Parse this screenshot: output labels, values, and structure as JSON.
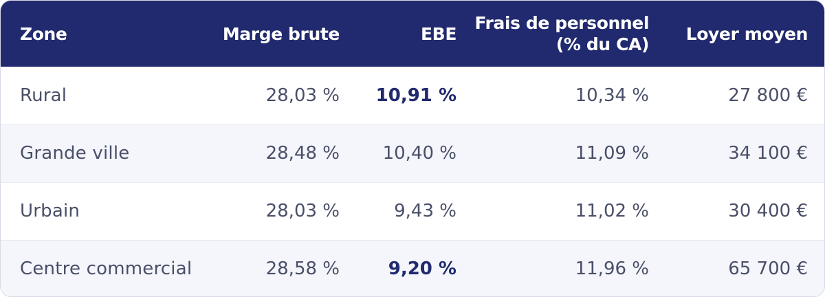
{
  "table": {
    "headers": {
      "zone": "Zone",
      "marge": "Marge brute",
      "ebe": "EBE",
      "frais_line1": "Frais de personnel",
      "frais_line2": "(% du CA)",
      "loyer": "Loyer moyen"
    },
    "rows": [
      {
        "zone": "Rural",
        "marge": "28,03 %",
        "ebe": "10,91 %",
        "frais": "10,34 %",
        "loyer": "27 800 €",
        "ebe_highlight": true
      },
      {
        "zone": "Grande ville",
        "marge": "28,48 %",
        "ebe": "10,40 %",
        "frais": "11,09 %",
        "loyer": "34 100 €",
        "ebe_highlight": false
      },
      {
        "zone": "Urbain",
        "marge": "28,03 %",
        "ebe": "9,43 %",
        "frais": "11,02 %",
        "loyer": "30 400 €",
        "ebe_highlight": false
      },
      {
        "zone": "Centre commercial",
        "marge": "28,58 %",
        "ebe": "9,20 %",
        "frais": "11,96 %",
        "loyer": "65 700 €",
        "ebe_highlight": true
      }
    ]
  },
  "colors": {
    "header_bg": "#212a6e",
    "header_text": "#ffffff",
    "body_text": "#4a4f68",
    "highlight_text": "#212a6e",
    "alt_row_bg": "#f4f6fb"
  }
}
